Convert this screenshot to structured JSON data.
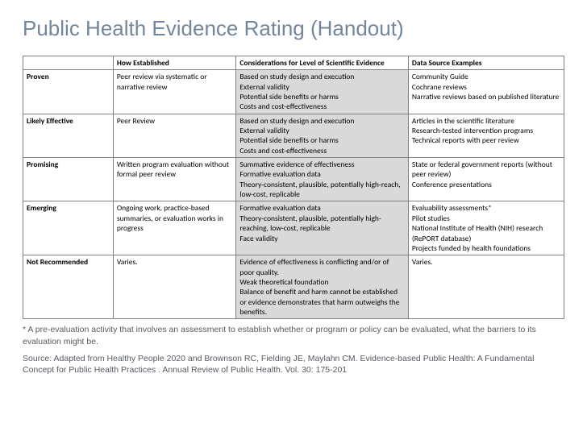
{
  "title": "Public Health Evidence Rating (Handout)",
  "colors": {
    "title": "#72869c",
    "border": "#808080",
    "shade": "#d9d9d9",
    "footnote": "#555a60",
    "background": "#ffffff"
  },
  "columns": [
    "",
    "How Established",
    "Considerations for Level of Scientific Evidence",
    "Data Source Examples"
  ],
  "rows": [
    {
      "label": "Proven",
      "how": "Peer review via systematic or narrative review",
      "considerations": "Based on study design and execution\nExternal validity\nPotential side benefits or harms\nCosts and cost-effectiveness",
      "sources": "Community Guide\nCochrane reviews\nNarrative reviews based on published literature"
    },
    {
      "label": "Likely Effective",
      "how": "Peer Review",
      "considerations": "Based on study design and execution\nExternal validity\nPotential side benefits or harms\nCosts and cost-effectiveness",
      "sources": "Articles in the scientific literature\nResearch-tested intervention programs\nTechnical reports with peer review"
    },
    {
      "label": "Promising",
      "how": "Written program evaluation without formal peer review",
      "considerations": "Summative evidence of effectiveness\nFormative evaluation data\nTheory-consistent, plausible, potentially high-reach, low-cost, replicable",
      "sources": "State or federal government reports (without peer review)\nConference presentations"
    },
    {
      "label": "Emerging",
      "how": "Ongoing work, practice-based summaries, or evaluation works in progress",
      "considerations": "Formative evaluation data\nTheory-consistent, plausible, potentially high-reaching, low-cost, replicable\nFace validity",
      "sources": "Evaluability assessments*\nPilot studies\nNational Institute of Health (NIH) research\n(RePORT database)\nProjects funded by health foundations"
    },
    {
      "label": "Not Recommended",
      "how": "Varies.",
      "considerations": "Evidence of effectiveness is conflicting and/or of poor quality.\nWeak theoretical foundation\nBalance of benefit and harm cannot be established or evidence demonstrates that harm outweighs the benefits.",
      "sources": "Varies."
    }
  ],
  "footnote1": "* A pre-evaluation activity that involves an assessment to establish whether or program or policy can be evaluated, what the barriers to its evaluation might be.",
  "footnote2": "Source: Adapted from Healthy People 2020 and Brownson RC, Fielding JE, Maylahn CM. Evidence-based Public Health: A Fundamental Concept for Public Health Practices . Annual Review of Public Health. Vol. 30: 175-201"
}
